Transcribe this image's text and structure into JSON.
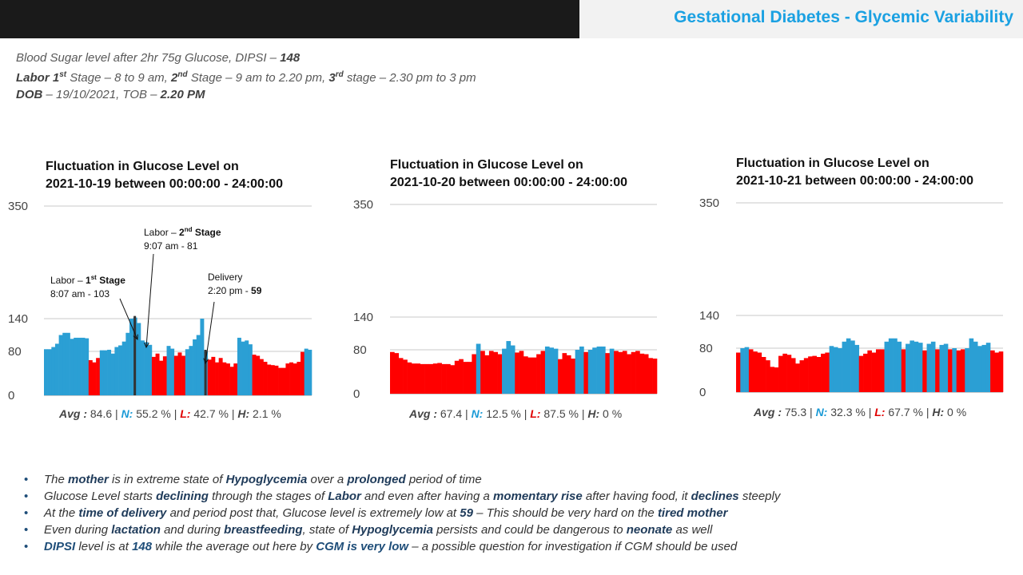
{
  "header": {
    "title": "Gestational Diabetes - Glycemic Variability"
  },
  "info": {
    "line1": {
      "text": "Blood Sugar level after 2hr 75g Glucose, DIPSI – ",
      "bold": "148"
    },
    "line2": {
      "a": "Labor 1",
      "a_sup": "st",
      "b": " Stage – 8 to 9 am, ",
      "c": "2",
      "c_sup": "nd",
      "d": " Stage – 9 am to 2.20 pm, ",
      "e": "3",
      "e_sup": "rd",
      "f": " stage – 2.30 pm to 3 pm"
    },
    "line3": {
      "a": "DOB",
      "b": " – 19/10/2021, TOB – ",
      "c": "2.20 PM"
    }
  },
  "colors": {
    "normal": "#2b9fd4",
    "low": "#ff0000",
    "marker": "#333333",
    "grid": "#c8c8c8"
  },
  "chart_data": [
    {
      "type": "bar",
      "title_line1": "Fluctuation in Glucose Level on",
      "title_line2": "2021-10-19 between 00:00:00 - 24:00:00",
      "yticks": [
        0,
        80,
        140,
        350
      ],
      "ylim": [
        0,
        350
      ],
      "values": [
        84,
        84,
        88,
        94,
        110,
        114,
        114,
        103,
        105,
        105,
        105,
        104,
        64,
        60,
        68,
        82,
        82,
        83,
        76,
        88,
        91,
        98,
        114,
        140,
        142,
        132,
        100,
        97,
        92,
        70,
        76,
        63,
        71,
        90,
        85,
        72,
        78,
        72,
        84,
        90,
        102,
        110,
        140,
        80,
        65,
        70,
        60,
        68,
        60,
        58,
        52,
        58,
        105,
        98,
        100,
        93,
        74,
        72,
        66,
        61,
        56,
        55,
        54,
        50,
        50,
        58,
        60,
        58,
        61,
        79,
        85,
        83
      ],
      "bar_colors": [
        "N",
        "N",
        "N",
        "N",
        "N",
        "N",
        "N",
        "N",
        "N",
        "N",
        "N",
        "N",
        "L",
        "L",
        "L",
        "N",
        "N",
        "N",
        "N",
        "N",
        "N",
        "N",
        "N",
        "N",
        "N",
        "N",
        "N",
        "N",
        "N",
        "L",
        "L",
        "L",
        "L",
        "N",
        "N",
        "L",
        "L",
        "L",
        "N",
        "N",
        "N",
        "N",
        "N",
        "N",
        "L",
        "L",
        "L",
        "L",
        "L",
        "L",
        "L",
        "L",
        "N",
        "N",
        "N",
        "N",
        "L",
        "L",
        "L",
        "L",
        "L",
        "L",
        "L",
        "L",
        "L",
        "L",
        "L",
        "L",
        "L",
        "L",
        "N",
        "N"
      ],
      "stats": {
        "avg_label": "Avg :",
        "avg": "84.6",
        "n_label": "N:",
        "n": "55.2 %",
        "l_label": "L:",
        "l": "42.7 %",
        "h_label": "H:",
        "h": "2.1 %"
      }
    },
    {
      "type": "bar",
      "title_line1": "Fluctuation in Glucose Level on",
      "title_line2": "2021-10-20 between 00:00:00 - 24:00:00",
      "yticks": [
        0,
        80,
        140,
        350
      ],
      "ylim": [
        0,
        350
      ],
      "values": [
        76,
        74,
        65,
        62,
        57,
        55,
        55,
        54,
        54,
        54,
        55,
        56,
        54,
        54,
        52,
        60,
        63,
        58,
        58,
        72,
        91,
        78,
        70,
        78,
        76,
        72,
        82,
        96,
        88,
        75,
        78,
        68,
        66,
        66,
        72,
        78,
        86,
        84,
        82,
        63,
        74,
        70,
        64,
        80,
        86,
        76,
        80,
        84,
        86,
        86,
        74,
        82,
        78,
        76,
        78,
        72,
        76,
        78,
        73,
        72,
        65,
        64
      ]
    },
    {
      "type": "bar",
      "title_line1": "Fluctuation in Glucose Level on",
      "title_line2": "2021-10-21 between 00:00:00 - 24:00:00",
      "yticks": [
        0,
        80,
        140,
        350
      ],
      "ylim": [
        0,
        350
      ],
      "values": [
        72,
        80,
        82,
        78,
        74,
        72,
        64,
        58,
        46,
        45,
        66,
        70,
        68,
        62,
        52,
        58,
        62,
        65,
        66,
        64,
        70,
        72,
        84,
        82,
        80,
        92,
        98,
        94,
        86,
        66,
        70,
        76,
        72,
        78,
        78,
        92,
        98,
        98,
        92,
        78,
        88,
        94,
        92,
        90,
        76,
        88,
        92,
        78,
        86,
        88,
        78,
        80,
        76,
        78,
        80,
        98,
        92,
        84,
        86,
        90,
        76,
        72,
        74
      ]
    }
  ],
  "annotations": {
    "stage1": {
      "a": "Labor – ",
      "b": "1",
      "b_sup": "st",
      "c": " Stage",
      "line2": "8:07 am - 103"
    },
    "stage2": {
      "a": "Labor – ",
      "b": "2",
      "b_sup": "nd",
      "c": "  Stage",
      "line2": "9:07 am - 81"
    },
    "delivery": {
      "line1": "Delivery",
      "a": "2:20 pm - ",
      "b": "59"
    }
  },
  "chart2_stats": {
    "avg_label": "Avg :",
    "avg": "67.4",
    "n_label": "N:",
    "n": "12.5 %",
    "l_label": "L:",
    "l": "87.5 %",
    "h_label": "H:",
    "h": "0 %"
  },
  "chart3_stats": {
    "avg_label": "Avg :",
    "avg": "75.3",
    "n_label": "N:",
    "n": "32.3 %",
    "l_label": "L:",
    "l": "67.7 %",
    "h_label": "H:",
    "h": "0 %"
  },
  "bullets": [
    {
      "p1": "The ",
      "b1": "mother",
      "p2": " is in extreme state of ",
      "b2": "Hypoglycemia",
      "p3": " over a ",
      "b3": "prolonged",
      "p4": " period of time"
    },
    {
      "p1": "Glucose Level starts ",
      "b1": "declining",
      "p2": " through the stages of ",
      "b2": "Labor",
      "p3": " and even after having a ",
      "b3": "momentary rise",
      "p4": " after having food, it ",
      "b4": "declines",
      "p5": " steeply"
    },
    {
      "p1": "At the ",
      "b1": "time of delivery",
      "p2": " and period post that, Glucose level is extremely low at ",
      "b2": "59",
      "p3": " – This should be very hard on the ",
      "b3": "tired mother"
    },
    {
      "p1": "Even during ",
      "b1": "lactation",
      "p2": " and during ",
      "b2": "breastfeeding",
      "p3": ", state of ",
      "b3": "Hypoglycemia",
      "p4": " persists and could be dangerous to ",
      "b4": "neonate",
      "p5": " as well"
    },
    {
      "b1": "DIPSI",
      "p1": " level is at ",
      "b2": "148",
      "p2": " while the average out here by ",
      "b3": "CGM is very low",
      "p3": " – a possible question for investigation if CGM should be used"
    }
  ]
}
